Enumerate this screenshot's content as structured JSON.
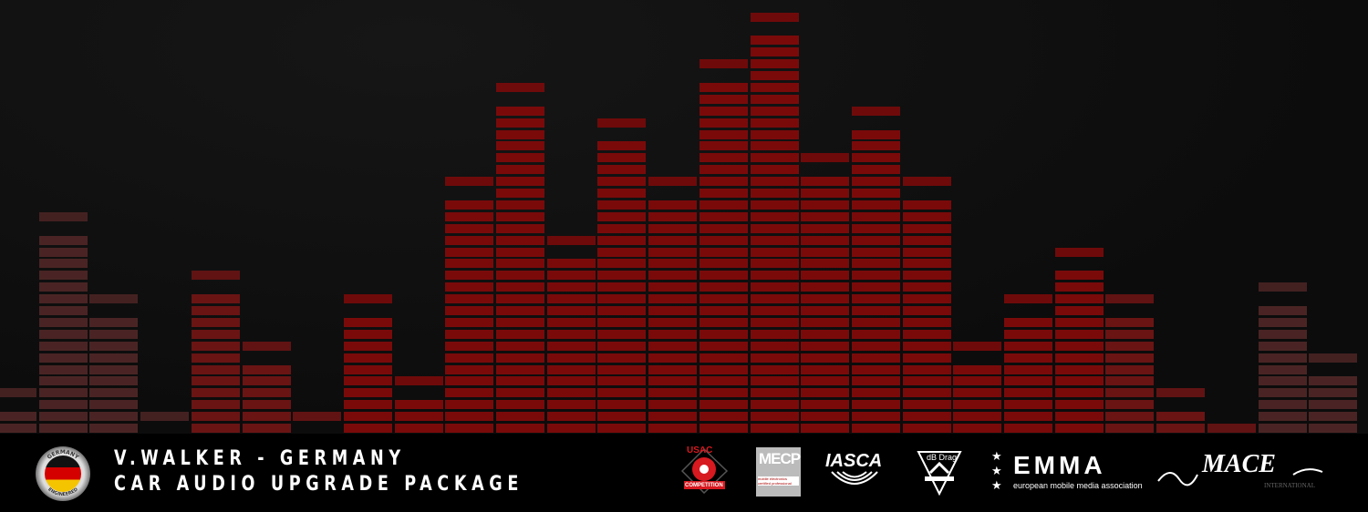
{
  "equalizer": {
    "colors": {
      "bright": "#7a0a0a",
      "dim": "#4a2424"
    },
    "stack_segments": [
      2,
      17,
      10,
      0,
      12,
      6,
      0,
      10,
      3,
      20,
      28,
      15,
      25,
      20,
      30,
      34,
      22,
      26,
      20,
      6,
      10,
      14,
      10,
      2,
      0,
      11,
      5
    ],
    "peak_segment": [
      3,
      18,
      11,
      1,
      13,
      7,
      1,
      11,
      4,
      21,
      29,
      16,
      26,
      21,
      31,
      35,
      23,
      27,
      21,
      7,
      11,
      15,
      11,
      3,
      0,
      12,
      6
    ]
  },
  "footer": {
    "line1": "V.WALKER - GERMANY",
    "line2": "CAR AUDIO UPGRADE PACKAGE",
    "badge": {
      "top_text": "GERMANY",
      "bottom_text": "ENGINEERED"
    },
    "logos": {
      "usac": {
        "name": "USAC",
        "sub": "COMPETITION"
      },
      "mecp": {
        "name": "MECP",
        "sub": "mobile electronics certified professional"
      },
      "iasca": {
        "name": "IASCA"
      },
      "dbdrag": {
        "name": "dB Drag"
      },
      "emma": {
        "name": "EMMA",
        "sub": "european mobile media association"
      },
      "mace": {
        "name": "MACE",
        "sub": "INTERNATIONAL"
      }
    }
  }
}
